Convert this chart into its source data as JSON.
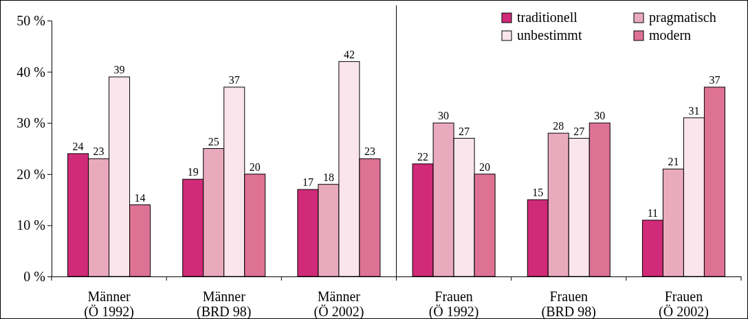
{
  "chart_data": {
    "type": "bar",
    "categories": [
      "Männer\n(Ö 1992)",
      "Männer\n(BRD 98)",
      "Männer\n(Ö 2002)",
      "Frauen\n(Ö 1992)",
      "Frauen\n(BRD 98)",
      "Frauen\n(Ö 2002)"
    ],
    "series": [
      {
        "name": "traditionell",
        "color": "#d02a78",
        "values": [
          24,
          19,
          17,
          22,
          15,
          11
        ]
      },
      {
        "name": "pragmatisch",
        "color": "#e9aabd",
        "values": [
          23,
          25,
          18,
          30,
          28,
          21
        ]
      },
      {
        "name": "unbestimmt",
        "color": "#f9e5eb",
        "values": [
          39,
          37,
          42,
          27,
          27,
          31
        ]
      },
      {
        "name": "modern",
        "color": "#de7294",
        "values": [
          14,
          20,
          23,
          20,
          30,
          37
        ]
      }
    ],
    "ylim": [
      0,
      50
    ],
    "yticks": [
      {
        "value": 0,
        "label": "0 %"
      },
      {
        "value": 10,
        "label": "10 %"
      },
      {
        "value": 20,
        "label": "20 %"
      },
      {
        "value": 30,
        "label": "30 %"
      },
      {
        "value": 40,
        "label": "40 %"
      },
      {
        "value": 50,
        "label": "50 %"
      }
    ],
    "data_labels": true,
    "legend": "top right",
    "grid": false
  }
}
